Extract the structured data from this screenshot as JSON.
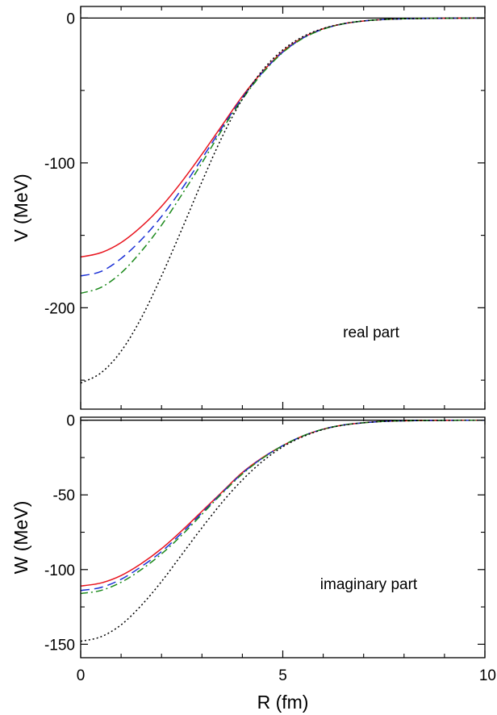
{
  "chart_data": [
    {
      "type": "line",
      "annotation": "real part",
      "xlabel": "",
      "ylabel": "V (MeV)",
      "xlim": [
        0,
        10
      ],
      "ylim": [
        -270,
        8
      ],
      "xticks_major": [
        0,
        5,
        10
      ],
      "xticks_minor": [
        1,
        2,
        3,
        4,
        6,
        7,
        8,
        9
      ],
      "yticks": [
        {
          "value": 0,
          "label": "0"
        },
        {
          "value": -100,
          "label": "-100"
        },
        {
          "value": -200,
          "label": "-200"
        }
      ],
      "yticks_minor": [
        -50,
        -150,
        -250
      ],
      "zero_line": true,
      "grid": false,
      "series": [
        {
          "color": "#e8141e",
          "dash": "solid",
          "x": [
            0,
            0.5,
            1,
            1.5,
            2,
            2.5,
            3,
            3.5,
            4,
            4.5,
            5,
            5.5,
            6,
            6.5,
            7,
            7.5,
            8,
            9,
            10
          ],
          "y": [
            -165,
            -162,
            -155,
            -144,
            -130,
            -113,
            -94,
            -74,
            -54,
            -37,
            -23,
            -13.5,
            -7.4,
            -3.9,
            -2,
            -1,
            -0.5,
            -0.12,
            -0.03
          ]
        },
        {
          "color": "#1a2fd6",
          "dash": "long-dash",
          "x": [
            0,
            0.5,
            1,
            1.5,
            2,
            2.5,
            3,
            3.5,
            4,
            4.5,
            5,
            5.5,
            6,
            6.5,
            7,
            7.5,
            8,
            9,
            10
          ],
          "y": [
            -178,
            -175,
            -166,
            -153,
            -137,
            -118,
            -97,
            -75.5,
            -55,
            -37.5,
            -23.5,
            -13.8,
            -7.6,
            -4,
            -2,
            -1,
            -0.5,
            -0.12,
            -0.03
          ]
        },
        {
          "color": "#1c8a1c",
          "dash": "dash-dot",
          "x": [
            0,
            0.5,
            1,
            1.5,
            2,
            2.5,
            3,
            3.5,
            4,
            4.5,
            5,
            5.5,
            6,
            6.5,
            7,
            7.5,
            8,
            9,
            10
          ],
          "y": [
            -190,
            -186,
            -176,
            -161,
            -143,
            -122,
            -100,
            -77,
            -56,
            -38,
            -23.8,
            -14,
            -7.7,
            -4,
            -2,
            -1,
            -0.5,
            -0.12,
            -0.03
          ]
        },
        {
          "color": "#000000",
          "dash": "dotted",
          "x": [
            0,
            0.5,
            1,
            1.5,
            2,
            2.5,
            3,
            3.5,
            4,
            4.5,
            5,
            5.5,
            6,
            6.5,
            7,
            7.5,
            8,
            9,
            10
          ],
          "y": [
            -252,
            -245,
            -230,
            -207,
            -178,
            -146,
            -113,
            -82,
            -56,
            -36,
            -22,
            -12.8,
            -7.2,
            -3.9,
            -2,
            -1,
            -0.5,
            -0.12,
            -0.03
          ]
        }
      ]
    },
    {
      "type": "line",
      "annotation": "imaginary part",
      "xlabel": "R (fm)",
      "ylabel": "W (MeV)",
      "xlim": [
        0,
        10
      ],
      "ylim": [
        -159,
        2
      ],
      "xticks_major": [
        0,
        5,
        10
      ],
      "xticks_minor": [
        1,
        2,
        3,
        4,
        6,
        7,
        8,
        9
      ],
      "xticklabels": [
        "0",
        "5",
        "10"
      ],
      "yticks": [
        {
          "value": 0,
          "label": "0"
        },
        {
          "value": -50,
          "label": "-50"
        },
        {
          "value": -100,
          "label": "-100"
        },
        {
          "value": -150,
          "label": "-150"
        }
      ],
      "yticks_minor": [
        -25,
        -75,
        -125
      ],
      "zero_line": true,
      "grid": false,
      "series": [
        {
          "color": "#e8141e",
          "dash": "solid",
          "x": [
            0,
            0.5,
            1,
            1.5,
            2,
            2.5,
            3,
            3.5,
            4,
            4.5,
            5,
            5.5,
            6,
            6.5,
            7,
            7.5,
            8,
            9,
            10
          ],
          "y": [
            -111,
            -109,
            -104,
            -96,
            -86,
            -74,
            -61,
            -48,
            -35,
            -25,
            -17,
            -10.5,
            -6,
            -3.2,
            -1.7,
            -0.8,
            -0.4,
            -0.1,
            -0.02
          ]
        },
        {
          "color": "#1a2fd6",
          "dash": "long-dash",
          "x": [
            0,
            0.5,
            1,
            1.5,
            2,
            2.5,
            3,
            3.5,
            4,
            4.5,
            5,
            5.5,
            6,
            6.5,
            7,
            7.5,
            8,
            9,
            10
          ],
          "y": [
            -114,
            -112,
            -106.5,
            -98,
            -88,
            -75.5,
            -62,
            -48.5,
            -35.5,
            -25.3,
            -17,
            -10.5,
            -6,
            -3.2,
            -1.7,
            -0.8,
            -0.4,
            -0.1,
            -0.02
          ]
        },
        {
          "color": "#1c8a1c",
          "dash": "dash-dot",
          "x": [
            0,
            0.5,
            1,
            1.5,
            2,
            2.5,
            3,
            3.5,
            4,
            4.5,
            5,
            5.5,
            6,
            6.5,
            7,
            7.5,
            8,
            9,
            10
          ],
          "y": [
            -116,
            -114,
            -108.5,
            -100,
            -89.5,
            -77,
            -63,
            -49,
            -36,
            -25.5,
            -17,
            -10.5,
            -6,
            -3.2,
            -1.7,
            -0.8,
            -0.4,
            -0.1,
            -0.02
          ]
        },
        {
          "color": "#000000",
          "dash": "dotted",
          "x": [
            0,
            0.5,
            1,
            1.5,
            2,
            2.5,
            3,
            3.5,
            4,
            4.5,
            5,
            5.5,
            6,
            6.5,
            7,
            7.5,
            8,
            9,
            10
          ],
          "y": [
            -148,
            -145,
            -137,
            -124,
            -108,
            -90,
            -72,
            -55,
            -40,
            -27.5,
            -17.8,
            -11,
            -6.2,
            -3.3,
            -1.7,
            -0.8,
            -0.4,
            -0.1,
            -0.02
          ]
        }
      ]
    }
  ]
}
